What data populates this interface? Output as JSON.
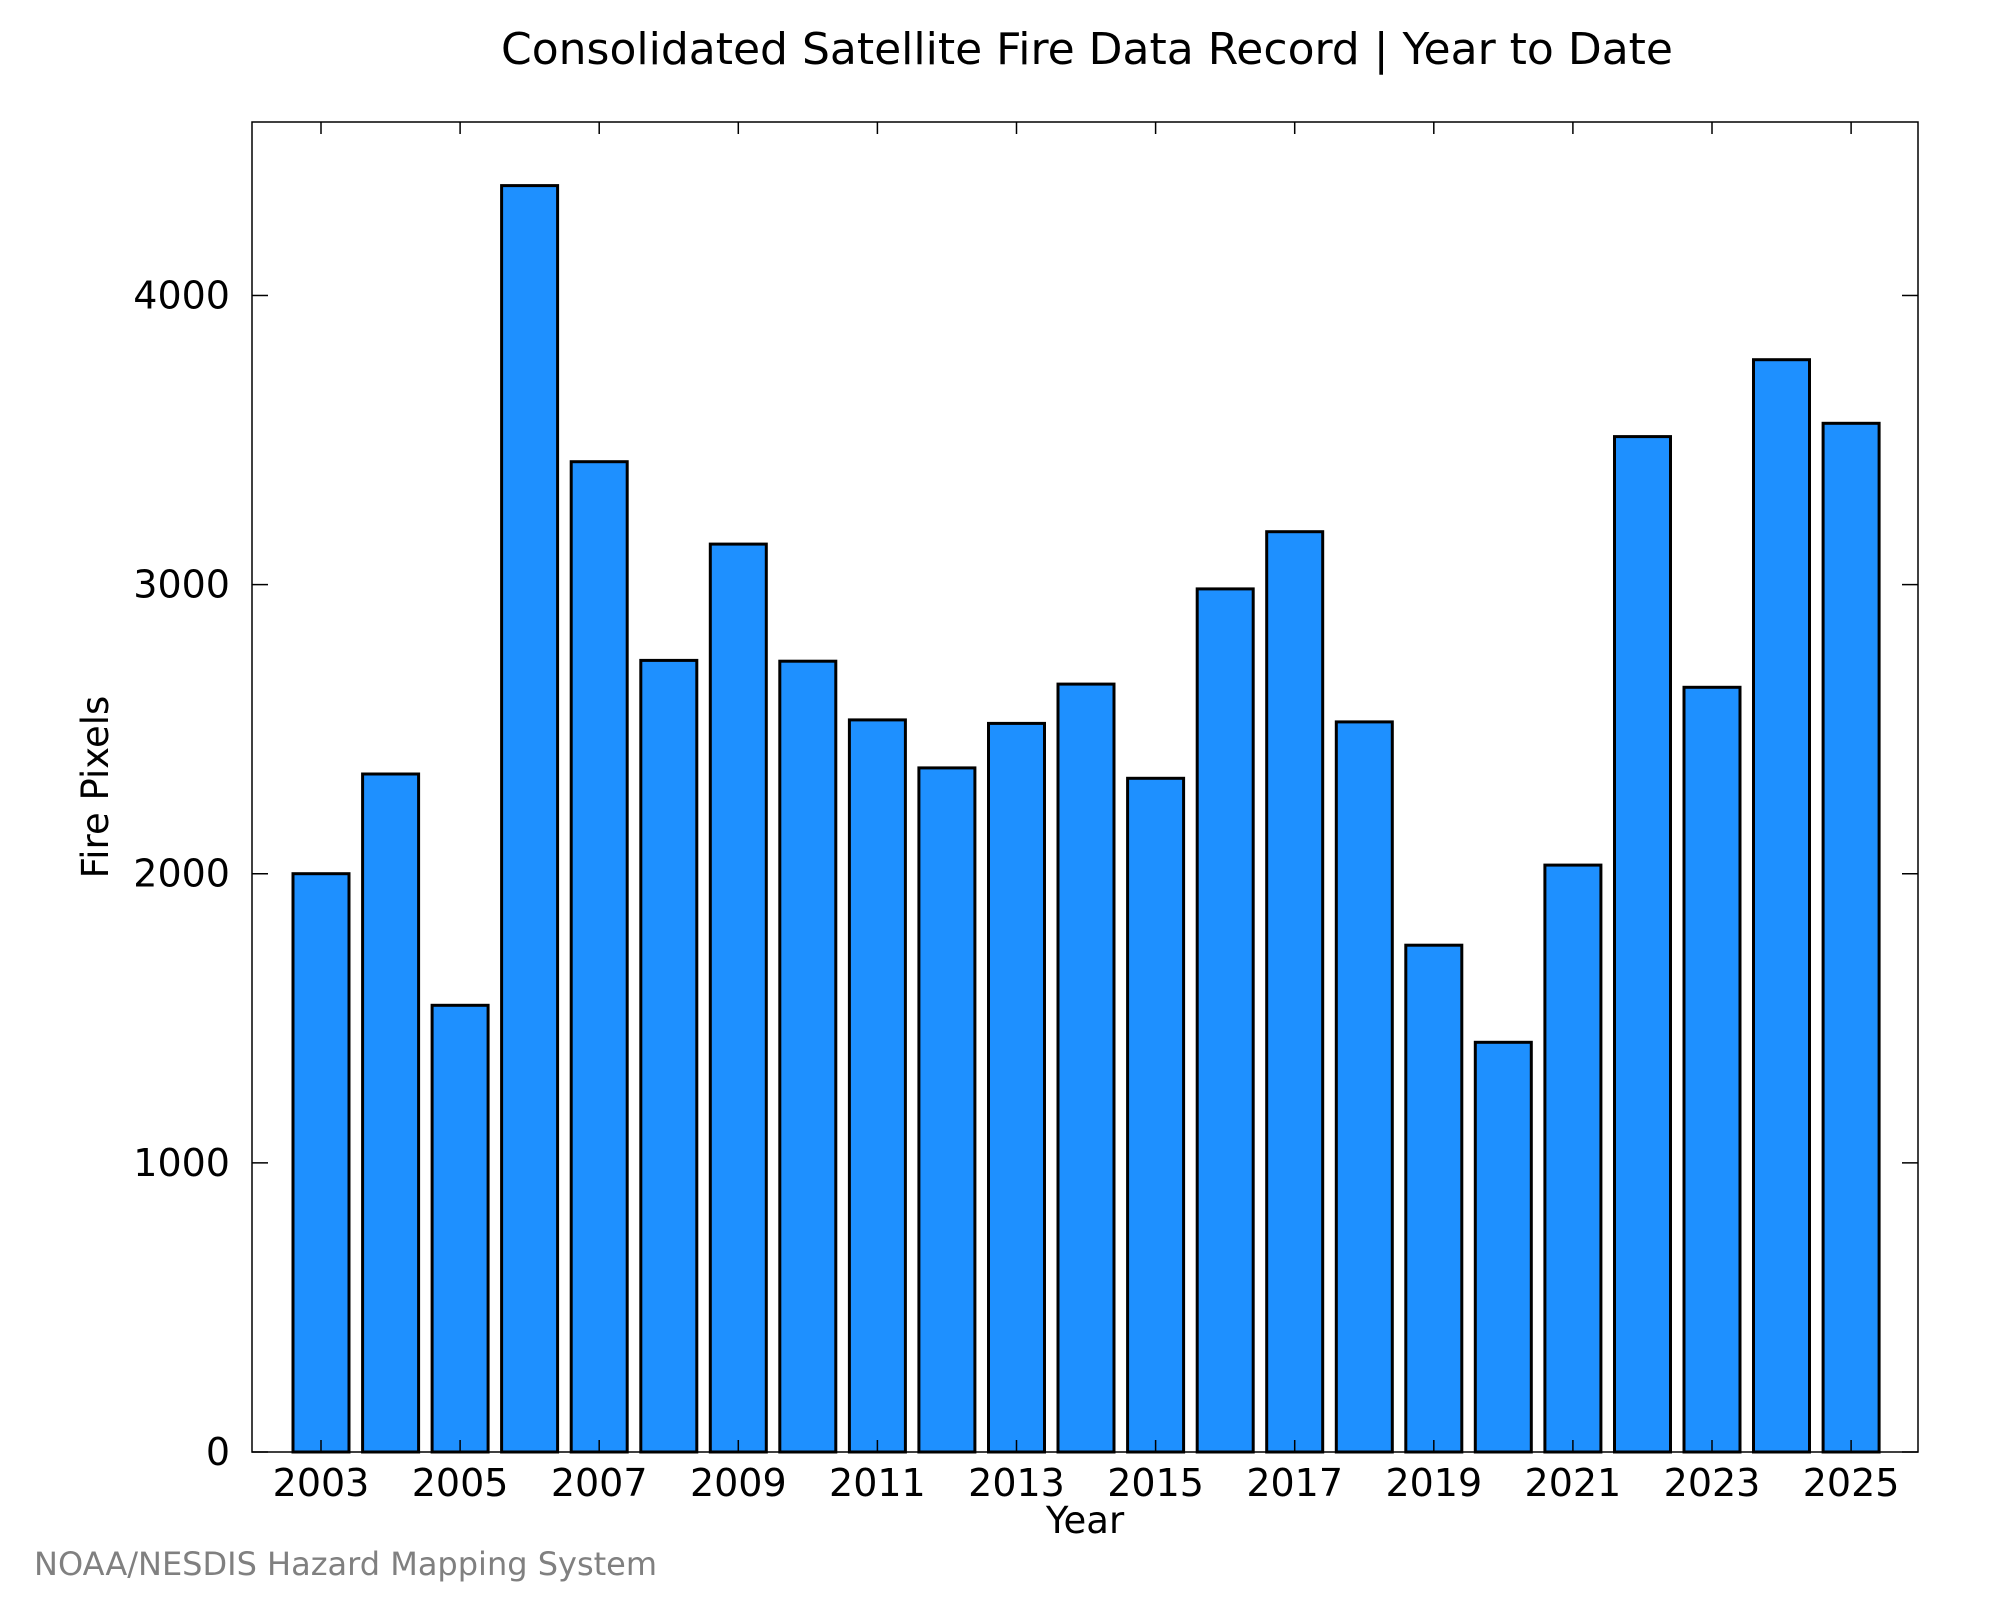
{
  "chart_data": {
    "type": "bar",
    "title": "Consolidated Satellite Fire Data Record | Year to Date",
    "xlabel": "Year",
    "ylabel": "Fire Pixels",
    "categories": [
      "2003",
      "2004",
      "2005",
      "2006",
      "2007",
      "2008",
      "2009",
      "2010",
      "2011",
      "2012",
      "2013",
      "2014",
      "2015",
      "2016",
      "2017",
      "2018",
      "2019",
      "2020",
      "2021",
      "2022",
      "2023",
      "2024",
      "2025"
    ],
    "values": [
      2000,
      2345,
      1545,
      4380,
      3425,
      2738,
      3140,
      2735,
      2532,
      2366,
      2520,
      2656,
      2330,
      2985,
      3183,
      2525,
      1753,
      1417,
      2030,
      3512,
      2645,
      3778,
      3558
    ],
    "x_tick_labels": [
      "2003",
      "2005",
      "2007",
      "2009",
      "2011",
      "2013",
      "2015",
      "2017",
      "2019",
      "2021",
      "2023",
      "2025"
    ],
    "y_tick_labels": [
      "0",
      "1000",
      "2000",
      "3000",
      "4000"
    ],
    "ylim": [
      0,
      4600
    ],
    "grid": false,
    "bar_color": "#1e90ff",
    "edge_color": "#000000",
    "source": "NOAA/NESDIS Hazard Mapping System"
  }
}
